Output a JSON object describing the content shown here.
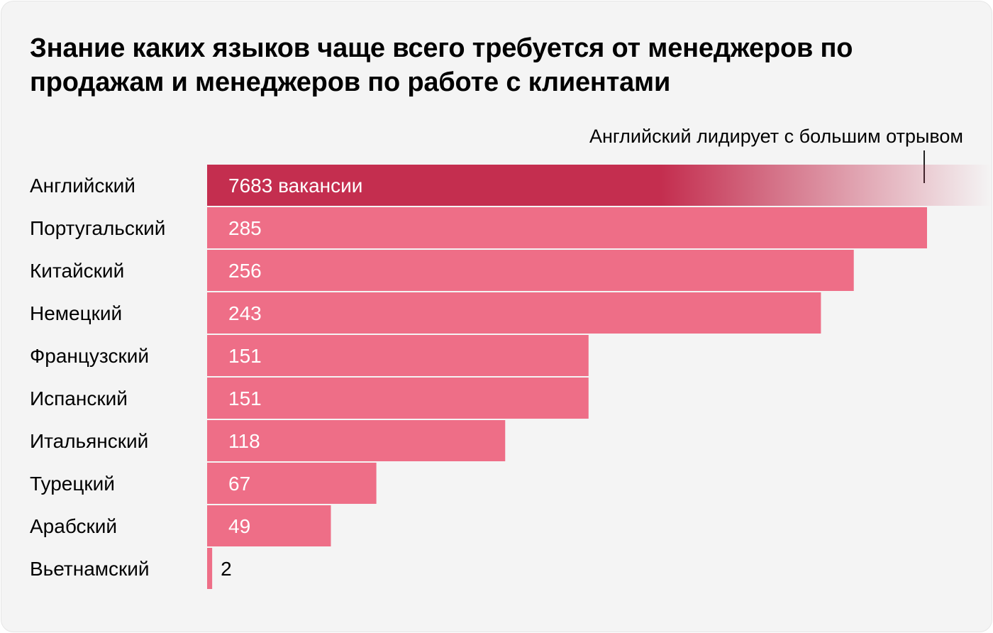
{
  "chart_data": {
    "type": "bar",
    "orientation": "horizontal",
    "title": "Знание каких языков чаще всего требуется от менеджеров по продажам и менеджеров по работе с клиентами",
    "annotation": "Английский лидирует с большим отрывом",
    "categories": [
      "Английский",
      "Португальский",
      "Китайский",
      "Немецкий",
      "Французский",
      "Испанский",
      "Итальянский",
      "Турецкий",
      "Арабский",
      "Вьетнамский"
    ],
    "values": [
      7683,
      285,
      256,
      243,
      151,
      151,
      118,
      67,
      49,
      2
    ],
    "value_labels": [
      "7683 вакансии",
      "285",
      "256",
      "243",
      "151",
      "151",
      "118",
      "67",
      "49",
      "2"
    ],
    "highlight_category": "Английский",
    "axis_break": true,
    "colors": {
      "bar": "#ee6e87",
      "highlight": "#c42e4f",
      "label_on_bar": "#ffffff",
      "label_outside": "#000000"
    },
    "grid": false,
    "legend": "none"
  }
}
